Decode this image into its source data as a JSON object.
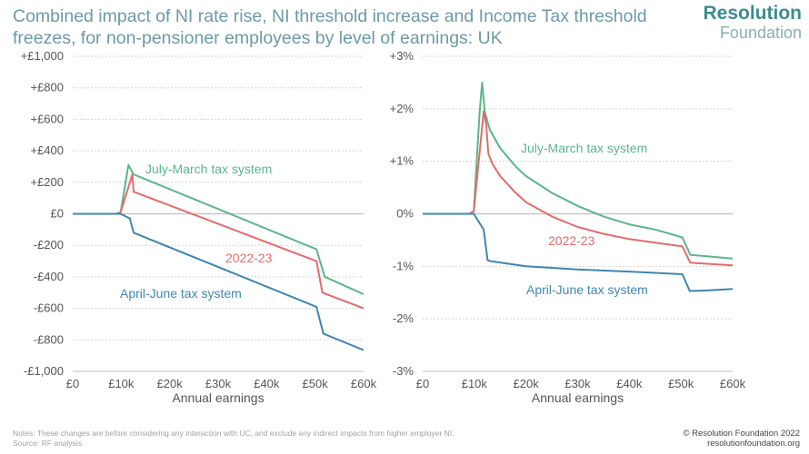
{
  "title": "Combined impact of NI rate rise, NI threshold increase and Income Tax threshold freezes, for non-pensioner employees by level of earnings: UK",
  "logo": {
    "line1": "Resolution",
    "line2": "Foundation"
  },
  "footer": {
    "notes": "Notes: These changes are before considering any interaction with UC, and exclude any indirect impacts from higher employer NI.",
    "source": "Source: RF analysis.",
    "copyright": "© Resolution Foundation 2022",
    "website": "resolutionfoundation.org"
  },
  "colors": {
    "green": "#5bb58a",
    "red": "#e36b6b",
    "blue": "#3f86b0",
    "grid": "#d4d4d4",
    "zero": "#bfbfbf"
  },
  "chart_data": [
    {
      "type": "line",
      "xlabel": "Annual earnings",
      "xlim": [
        0,
        60000
      ],
      "xticks": [
        0,
        10000,
        20000,
        30000,
        40000,
        50000,
        60000
      ],
      "xtick_labels": [
        "£0",
        "£10k",
        "£20k",
        "£30k",
        "£40k",
        "£50k",
        "£60k"
      ],
      "ylim": [
        -1000,
        1000
      ],
      "yticks": [
        1000,
        800,
        600,
        400,
        200,
        0,
        -200,
        -400,
        -600,
        -800,
        -1000
      ],
      "ytick_labels": [
        "+£1,000",
        "+£800",
        "+£600",
        "+£400",
        "+£200",
        "£0",
        "-£200",
        "-£400",
        "-£600",
        "-£800",
        "-£1,000"
      ],
      "grid": "horizontal",
      "series": [
        {
          "name": "July-March tax system",
          "color_key": "green",
          "x": [
            0,
            9000,
            9880,
            11500,
            12570,
            50270,
            52000,
            60000
          ],
          "y": [
            0,
            0,
            10,
            310,
            250,
            -225,
            -400,
            -510
          ]
        },
        {
          "name": "2022-23",
          "color_key": "red",
          "x": [
            0,
            9000,
            9880,
            12300,
            12570,
            50270,
            51500,
            60000
          ],
          "y": [
            0,
            0,
            10,
            250,
            140,
            -300,
            -500,
            -600
          ]
        },
        {
          "name": "April-June tax system",
          "color_key": "blue",
          "x": [
            0,
            9000,
            9880,
            11800,
            12570,
            50270,
            51700,
            60000
          ],
          "y": [
            0,
            0,
            0,
            -30,
            -120,
            -590,
            -760,
            -865
          ]
        }
      ]
    },
    {
      "type": "line",
      "xlabel": "Annual earnings",
      "xlim": [
        0,
        60000
      ],
      "xticks": [
        0,
        10000,
        20000,
        30000,
        40000,
        50000,
        60000
      ],
      "xtick_labels": [
        "£0",
        "£10k",
        "£20k",
        "£30k",
        "£40k",
        "£50k",
        "£60k"
      ],
      "ylim": [
        -3,
        3
      ],
      "yticks": [
        3,
        2,
        1,
        0,
        -1,
        -2,
        -3
      ],
      "ytick_labels": [
        "+3%",
        "+2%",
        "+1%",
        "0%",
        "-1%",
        "-2%",
        "-3%"
      ],
      "grid": "horizontal",
      "series": [
        {
          "name": "July-March tax system",
          "color_key": "green",
          "x": [
            0,
            9000,
            9880,
            11000,
            11500,
            12000,
            13000,
            15000,
            18000,
            20000,
            25000,
            30000,
            35000,
            40000,
            45000,
            50270,
            51800,
            60000
          ],
          "y": [
            0,
            0,
            0.05,
            1.9,
            2.5,
            1.95,
            1.6,
            1.25,
            0.9,
            0.72,
            0.4,
            0.15,
            -0.05,
            -0.2,
            -0.3,
            -0.45,
            -0.78,
            -0.85
          ]
        },
        {
          "name": "2022-23",
          "color_key": "red",
          "x": [
            0,
            9000,
            9880,
            11800,
            12300,
            12700,
            13500,
            15000,
            18000,
            20000,
            25000,
            30000,
            35000,
            40000,
            45000,
            50270,
            51800,
            60000
          ],
          "y": [
            0,
            0,
            0.05,
            1.95,
            1.7,
            1.15,
            0.95,
            0.72,
            0.4,
            0.22,
            -0.05,
            -0.25,
            -0.38,
            -0.48,
            -0.55,
            -0.62,
            -0.93,
            -0.98
          ]
        },
        {
          "name": "April-June tax system",
          "color_key": "blue",
          "x": [
            0,
            9000,
            9880,
            11800,
            12570,
            13000,
            20000,
            30000,
            40000,
            50270,
            51700,
            55000,
            60000
          ],
          "y": [
            0,
            0,
            0,
            -0.3,
            -0.88,
            -0.9,
            -1.0,
            -1.06,
            -1.1,
            -1.15,
            -1.47,
            -1.46,
            -1.43
          ]
        }
      ]
    }
  ]
}
